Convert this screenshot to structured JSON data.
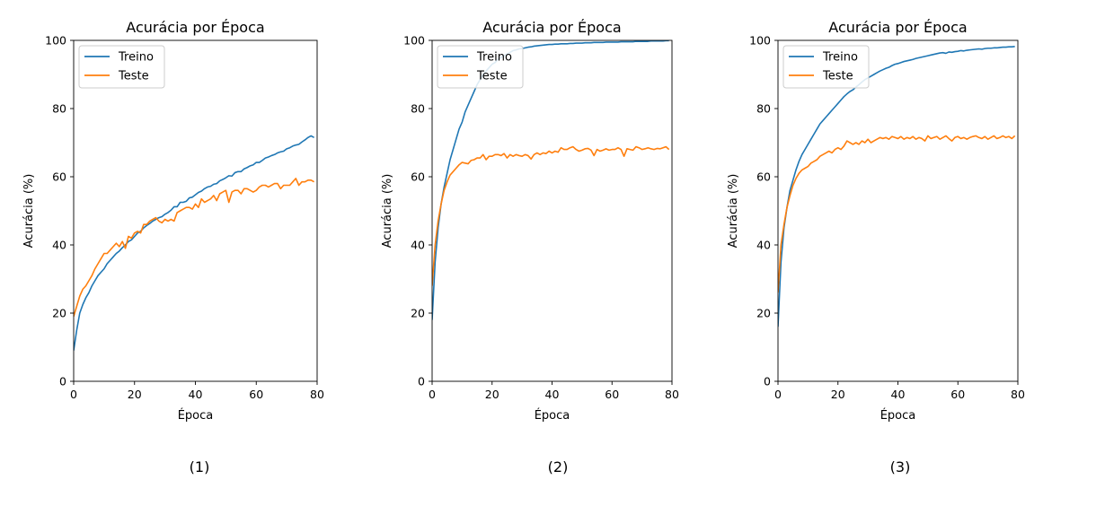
{
  "figure": {
    "captions": [
      "(1)",
      "(2)",
      "(3)"
    ]
  },
  "colors": {
    "train": "#1f77b4",
    "test": "#ff7f0e"
  },
  "chart_data": [
    {
      "type": "line",
      "title": "Acurácia por Época",
      "xlabel": "Época",
      "ylabel": "Acurácia (%)",
      "xlim": [
        0,
        80
      ],
      "ylim": [
        0,
        100
      ],
      "xticks": [
        0,
        20,
        40,
        60,
        80
      ],
      "yticks": [
        0,
        20,
        40,
        60,
        80,
        100
      ],
      "legend_position": "top-left",
      "series": [
        {
          "name": "Treino",
          "x": [
            0,
            1,
            2,
            3,
            4,
            5,
            6,
            7,
            8,
            9,
            10,
            11,
            12,
            13,
            14,
            15,
            16,
            17,
            18,
            19,
            20,
            21,
            22,
            23,
            24,
            25,
            26,
            27,
            28,
            29,
            30,
            31,
            32,
            33,
            34,
            35,
            36,
            37,
            38,
            39,
            40,
            41,
            42,
            43,
            44,
            45,
            46,
            47,
            48,
            49,
            50,
            51,
            52,
            53,
            54,
            55,
            56,
            57,
            58,
            59,
            60,
            61,
            62,
            63,
            64,
            65,
            66,
            67,
            68,
            69,
            70,
            71,
            72,
            73,
            74,
            75,
            76,
            77,
            78,
            79
          ],
          "values": [
            9,
            15,
            20,
            22.5,
            24.5,
            26,
            28,
            29.5,
            31,
            32,
            33,
            34.5,
            35.5,
            36.5,
            37.5,
            38.2,
            39.2,
            40,
            41,
            41.5,
            42.5,
            43.5,
            44,
            45,
            45.7,
            46.3,
            47,
            47.5,
            48,
            48.3,
            49,
            49.5,
            50.2,
            51.2,
            51.2,
            52.5,
            52.5,
            52.8,
            53.8,
            54,
            54.7,
            55.4,
            55.8,
            56.5,
            57,
            57.2,
            57.8,
            58,
            58.8,
            59.2,
            59.7,
            60.3,
            60.2,
            61.2,
            61.5,
            61.5,
            62.3,
            62.7,
            63.2,
            63.5,
            64.2,
            64.2,
            64.8,
            65.5,
            65.8,
            66.2,
            66.5,
            67,
            67.3,
            67.5,
            68.2,
            68.5,
            69,
            69.3,
            69.5,
            70.2,
            70.8,
            71.5,
            72,
            71.5
          ]
        },
        {
          "name": "Teste",
          "x": [
            0,
            1,
            2,
            3,
            4,
            5,
            6,
            7,
            8,
            9,
            10,
            11,
            12,
            13,
            14,
            15,
            16,
            17,
            18,
            19,
            20,
            21,
            22,
            23,
            24,
            25,
            26,
            27,
            28,
            29,
            30,
            31,
            32,
            33,
            34,
            35,
            36,
            37,
            38,
            39,
            40,
            41,
            42,
            43,
            44,
            45,
            46,
            47,
            48,
            49,
            50,
            51,
            52,
            53,
            54,
            55,
            56,
            57,
            58,
            59,
            60,
            61,
            62,
            63,
            64,
            65,
            66,
            67,
            68,
            69,
            70,
            71,
            72,
            73,
            74,
            75,
            76,
            77,
            78,
            79
          ],
          "values": [
            19,
            22,
            25,
            27,
            28,
            29.5,
            31,
            33,
            34.5,
            36,
            37.5,
            37.5,
            38.5,
            39.5,
            40.5,
            39.5,
            41,
            39,
            42.5,
            42,
            43.5,
            44,
            43.5,
            46,
            46,
            47,
            47.5,
            48,
            47,
            46.5,
            47.5,
            47,
            47.5,
            47,
            49.5,
            50,
            50.5,
            51,
            51,
            50.5,
            52,
            51,
            53.5,
            52.5,
            53,
            53.5,
            54.5,
            53,
            55,
            55.5,
            56,
            52.5,
            55.5,
            56,
            56,
            55,
            56.5,
            56.5,
            56,
            55.5,
            56,
            57,
            57.5,
            57.5,
            57,
            57.5,
            58,
            58,
            56.5,
            57.5,
            57.5,
            57.5,
            58.5,
            59.5,
            57.5,
            58.5,
            58.5,
            59,
            59,
            58.5
          ]
        }
      ]
    },
    {
      "type": "line",
      "title": "Acurácia por Época",
      "xlabel": "Época",
      "ylabel": "Acurácia (%)",
      "xlim": [
        0,
        80
      ],
      "ylim": [
        0,
        100
      ],
      "xticks": [
        0,
        20,
        40,
        60,
        80
      ],
      "yticks": [
        0,
        20,
        40,
        60,
        80,
        100
      ],
      "legend_position": "top-left",
      "series": [
        {
          "name": "Treino",
          "x": [
            0,
            1,
            2,
            3,
            4,
            5,
            6,
            7,
            8,
            9,
            10,
            11,
            12,
            13,
            14,
            15,
            16,
            17,
            18,
            19,
            20,
            21,
            22,
            23,
            24,
            25,
            26,
            27,
            28,
            29,
            30,
            31,
            32,
            33,
            34,
            35,
            36,
            37,
            38,
            39,
            40,
            41,
            42,
            43,
            44,
            45,
            46,
            47,
            48,
            49,
            50,
            51,
            52,
            53,
            54,
            55,
            56,
            57,
            58,
            59,
            60,
            61,
            62,
            63,
            64,
            65,
            66,
            67,
            68,
            69,
            70,
            71,
            72,
            73,
            74,
            75,
            76,
            77,
            78,
            79
          ],
          "values": [
            18,
            35,
            45,
            52,
            57,
            61,
            65,
            68,
            71,
            74,
            76,
            79,
            81,
            83,
            85,
            87,
            88.5,
            90,
            91,
            92,
            93,
            93.5,
            94.5,
            95,
            95.5,
            96,
            96.5,
            97,
            97.2,
            97.5,
            97.6,
            97.8,
            98,
            98.1,
            98.3,
            98.4,
            98.5,
            98.6,
            98.7,
            98.8,
            98.8,
            98.9,
            98.9,
            99,
            99,
            99,
            99.1,
            99.1,
            99.2,
            99.2,
            99.2,
            99.3,
            99.3,
            99.3,
            99.4,
            99.4,
            99.4,
            99.4,
            99.5,
            99.5,
            99.5,
            99.5,
            99.5,
            99.6,
            99.6,
            99.6,
            99.6,
            99.6,
            99.7,
            99.7,
            99.7,
            99.7,
            99.7,
            99.8,
            99.8,
            99.8,
            99.8,
            99.8,
            99.9,
            99.9
          ]
        },
        {
          "name": "Teste",
          "x": [
            0,
            1,
            2,
            3,
            4,
            5,
            6,
            7,
            8,
            9,
            10,
            11,
            12,
            13,
            14,
            15,
            16,
            17,
            18,
            19,
            20,
            21,
            22,
            23,
            24,
            25,
            26,
            27,
            28,
            29,
            30,
            31,
            32,
            33,
            34,
            35,
            36,
            37,
            38,
            39,
            40,
            41,
            42,
            43,
            44,
            45,
            46,
            47,
            48,
            49,
            50,
            51,
            52,
            53,
            54,
            55,
            56,
            57,
            58,
            59,
            60,
            61,
            62,
            63,
            64,
            65,
            66,
            67,
            68,
            69,
            70,
            71,
            72,
            73,
            74,
            75,
            76,
            77,
            78,
            79
          ],
          "values": [
            28,
            40,
            47,
            52,
            56,
            58.5,
            60.5,
            61.5,
            62.5,
            63.5,
            64.2,
            64,
            63.8,
            64.8,
            65,
            65.5,
            65.5,
            66.5,
            65,
            66,
            66,
            66.5,
            66.5,
            66.2,
            66.8,
            65.5,
            66.5,
            66,
            66.5,
            66.2,
            66,
            66.5,
            66.2,
            65.2,
            66.5,
            67,
            66.5,
            67,
            66.8,
            67.5,
            67,
            67.5,
            67.2,
            68.5,
            68,
            68,
            68.5,
            68.8,
            68,
            67.5,
            67.8,
            68.2,
            68.3,
            67.8,
            66.2,
            68,
            67.5,
            67.8,
            68.2,
            67.8,
            68,
            68,
            68.5,
            68,
            66,
            68.2,
            68,
            67.8,
            68.8,
            68.5,
            68,
            68.2,
            68.5,
            68.2,
            68,
            68.3,
            68.2,
            68.5,
            68.8,
            68
          ]
        }
      ]
    },
    {
      "type": "line",
      "title": "Acurácia por Época",
      "xlabel": "Época",
      "ylabel": "Acurácia (%)",
      "xlim": [
        0,
        80
      ],
      "ylim": [
        0,
        100
      ],
      "xticks": [
        0,
        20,
        40,
        60,
        80
      ],
      "yticks": [
        0,
        20,
        40,
        60,
        80,
        100
      ],
      "legend_position": "top-left",
      "series": [
        {
          "name": "Treino",
          "x": [
            0,
            1,
            2,
            3,
            4,
            5,
            6,
            7,
            8,
            9,
            10,
            11,
            12,
            13,
            14,
            15,
            16,
            17,
            18,
            19,
            20,
            21,
            22,
            23,
            24,
            25,
            26,
            27,
            28,
            29,
            30,
            31,
            32,
            33,
            34,
            35,
            36,
            37,
            38,
            39,
            40,
            41,
            42,
            43,
            44,
            45,
            46,
            47,
            48,
            49,
            50,
            51,
            52,
            53,
            54,
            55,
            56,
            57,
            58,
            59,
            60,
            61,
            62,
            63,
            64,
            65,
            66,
            67,
            68,
            69,
            70,
            71,
            72,
            73,
            74,
            75,
            76,
            77,
            78,
            79
          ],
          "values": [
            16,
            35,
            45,
            51,
            56,
            59,
            62,
            64.5,
            66.5,
            68,
            69.5,
            71,
            72.5,
            74,
            75.5,
            76.5,
            77.5,
            78.5,
            79.5,
            80.5,
            81.5,
            82.5,
            83.5,
            84.3,
            85,
            85.5,
            86.3,
            87,
            87.8,
            88.5,
            89,
            89.5,
            90,
            90.5,
            91,
            91.4,
            91.8,
            92.1,
            92.6,
            93,
            93.2,
            93.5,
            93.8,
            94,
            94.2,
            94.4,
            94.7,
            94.9,
            95.1,
            95.3,
            95.5,
            95.7,
            95.9,
            96.1,
            96.3,
            96.4,
            96.2,
            96.6,
            96.5,
            96.7,
            96.8,
            97,
            96.9,
            97.1,
            97.2,
            97.3,
            97.4,
            97.5,
            97.4,
            97.6,
            97.7,
            97.7,
            97.8,
            97.8,
            97.9,
            98,
            98,
            98.1,
            98.1,
            98.2
          ]
        },
        {
          "name": "Teste",
          "x": [
            0,
            1,
            2,
            3,
            4,
            5,
            6,
            7,
            8,
            9,
            10,
            11,
            12,
            13,
            14,
            15,
            16,
            17,
            18,
            19,
            20,
            21,
            22,
            23,
            24,
            25,
            26,
            27,
            28,
            29,
            30,
            31,
            32,
            33,
            34,
            35,
            36,
            37,
            38,
            39,
            40,
            41,
            42,
            43,
            44,
            45,
            46,
            47,
            48,
            49,
            50,
            51,
            52,
            53,
            54,
            55,
            56,
            57,
            58,
            59,
            60,
            61,
            62,
            63,
            64,
            65,
            66,
            67,
            68,
            69,
            70,
            71,
            72,
            73,
            74,
            75,
            76,
            77,
            78,
            79
          ],
          "values": [
            26,
            40,
            46,
            51,
            54.5,
            57.5,
            59.5,
            61,
            62,
            62.5,
            63,
            64,
            64.5,
            65,
            66,
            66.5,
            67,
            67.5,
            67,
            68,
            68.5,
            68,
            69,
            70.5,
            70,
            69.5,
            70,
            69.5,
            70.5,
            70,
            71,
            70,
            70.5,
            71,
            71.5,
            71.2,
            71.5,
            71,
            71.8,
            71.5,
            71.2,
            71.8,
            71,
            71.5,
            71.2,
            71.8,
            71,
            71.5,
            71.2,
            70.5,
            72,
            71.2,
            71.5,
            71.8,
            71,
            71.5,
            72,
            71.2,
            70.5,
            71.5,
            71.8,
            71.2,
            71.5,
            71,
            71.5,
            71.8,
            72,
            71.5,
            71.2,
            71.8,
            71,
            71.5,
            72,
            71.2,
            71.5,
            72,
            71.5,
            71.8,
            71.2,
            72
          ]
        }
      ]
    }
  ]
}
